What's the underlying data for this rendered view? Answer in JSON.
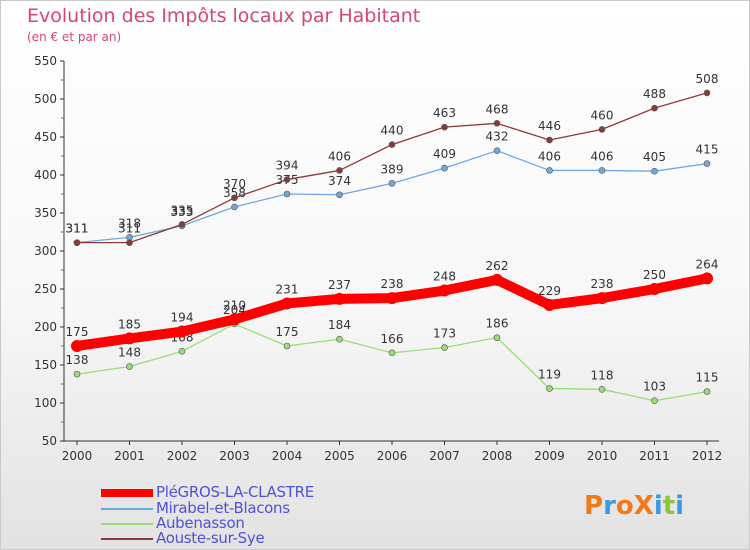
{
  "title": "Evolution des Impôts locaux par Habitant",
  "subtitle": "(en € et par an)",
  "logo": {
    "text": "ProXiti",
    "letters": [
      "P",
      "r",
      "o",
      "X",
      "i",
      "t",
      "i"
    ],
    "colors": [
      "#f07a1a",
      "#3b9be0",
      "#f07a1a",
      "#f07a1a",
      "#3b9be0",
      "#8cc63f",
      "#3b9be0"
    ]
  },
  "colors": {
    "title": "#d6457a",
    "legend_text": "#4f52d6",
    "axis": "#333333",
    "grid_tick": "#cc4444"
  },
  "chart_data": {
    "type": "line",
    "x": [
      "2000",
      "2001",
      "2002",
      "2003",
      "2004",
      "2005",
      "2006",
      "2007",
      "2008",
      "2009",
      "2010",
      "2011",
      "2012"
    ],
    "ylim": [
      50,
      550
    ],
    "yticks": [
      50,
      100,
      150,
      200,
      250,
      300,
      350,
      400,
      450,
      500,
      550
    ],
    "grid": false,
    "legend_position": "bottom-left",
    "series": [
      {
        "name": "PléGROS-LA-CLASTRE",
        "color": "#ff0000",
        "values": [
          175,
          185,
          194,
          210,
          231,
          237,
          238,
          248,
          262,
          229,
          238,
          250,
          264
        ]
      },
      {
        "name": "Mirabel-et-Blacons",
        "color": "#6fa8dc",
        "values": [
          311,
          318,
          333,
          358,
          375,
          374,
          389,
          409,
          432,
          406,
          406,
          405,
          415
        ]
      },
      {
        "name": "Aubenasson",
        "color": "#99dd77",
        "values": [
          138,
          148,
          168,
          204,
          175,
          184,
          166,
          173,
          186,
          119,
          118,
          103,
          115
        ]
      },
      {
        "name": "Aouste-sur-Sye",
        "color": "#8b3a3a",
        "values": [
          311,
          311,
          335,
          370,
          394,
          406,
          440,
          463,
          468,
          446,
          460,
          488,
          508
        ]
      }
    ]
  }
}
